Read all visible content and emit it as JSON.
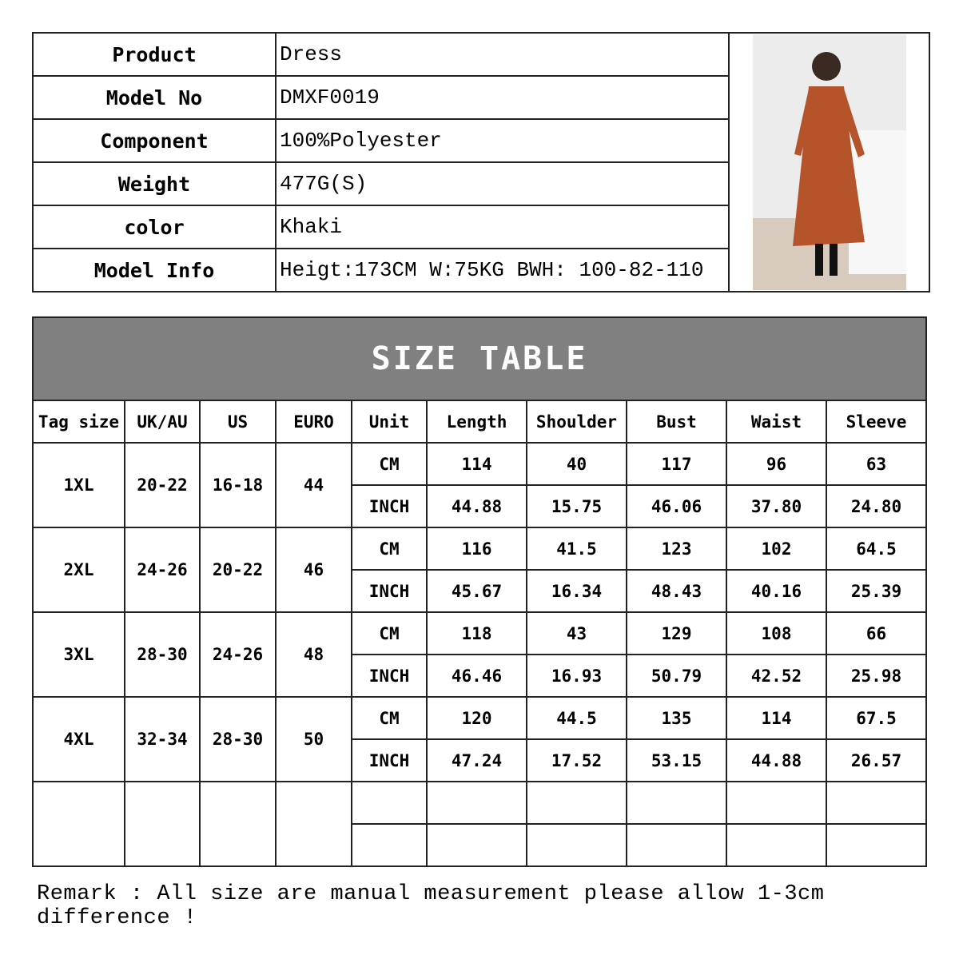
{
  "product_info": [
    {
      "label": "Product",
      "value": "Dress"
    },
    {
      "label": "Model No",
      "value": "DMXF0019"
    },
    {
      "label": "Component",
      "value": "100%Polyester"
    },
    {
      "label": "Weight",
      "value": "477G(S)"
    },
    {
      "label": "color",
      "value": "Khaki"
    },
    {
      "label": "Model Info",
      "value": "Heigt:173CM W:75KG BWH: 100-82-110"
    }
  ],
  "dress_color": "#b5532a",
  "size_table": {
    "title": "SIZE TABLE",
    "headers": [
      "Tag size",
      "UK/AU",
      "US",
      "EURO",
      "Unit",
      "Length",
      "Shoulder",
      "Bust",
      "Waist",
      "Sleeve"
    ],
    "rows": [
      {
        "tag": "1XL",
        "uk": "20-22",
        "us": "16-18",
        "euro": "44",
        "cm": [
          "CM",
          "114",
          "40",
          "117",
          "96",
          "63"
        ],
        "inch": [
          "INCH",
          "44.88",
          "15.75",
          "46.06",
          "37.80",
          "24.80"
        ]
      },
      {
        "tag": "2XL",
        "uk": "24-26",
        "us": "20-22",
        "euro": "46",
        "cm": [
          "CM",
          "116",
          "41.5",
          "123",
          "102",
          "64.5"
        ],
        "inch": [
          "INCH",
          "45.67",
          "16.34",
          "48.43",
          "40.16",
          "25.39"
        ]
      },
      {
        "tag": "3XL",
        "uk": "28-30",
        "us": "24-26",
        "euro": "48",
        "cm": [
          "CM",
          "118",
          "43",
          "129",
          "108",
          "66"
        ],
        "inch": [
          "INCH",
          "46.46",
          "16.93",
          "50.79",
          "42.52",
          "25.98"
        ]
      },
      {
        "tag": "4XL",
        "uk": "32-34",
        "us": "28-30",
        "euro": "50",
        "cm": [
          "CM",
          "120",
          "44.5",
          "135",
          "114",
          "67.5"
        ],
        "inch": [
          "INCH",
          "47.24",
          "17.52",
          "53.15",
          "44.88",
          "26.57"
        ]
      }
    ]
  },
  "remark": "Remark : All size are manual measurement please allow 1-3cm difference !"
}
